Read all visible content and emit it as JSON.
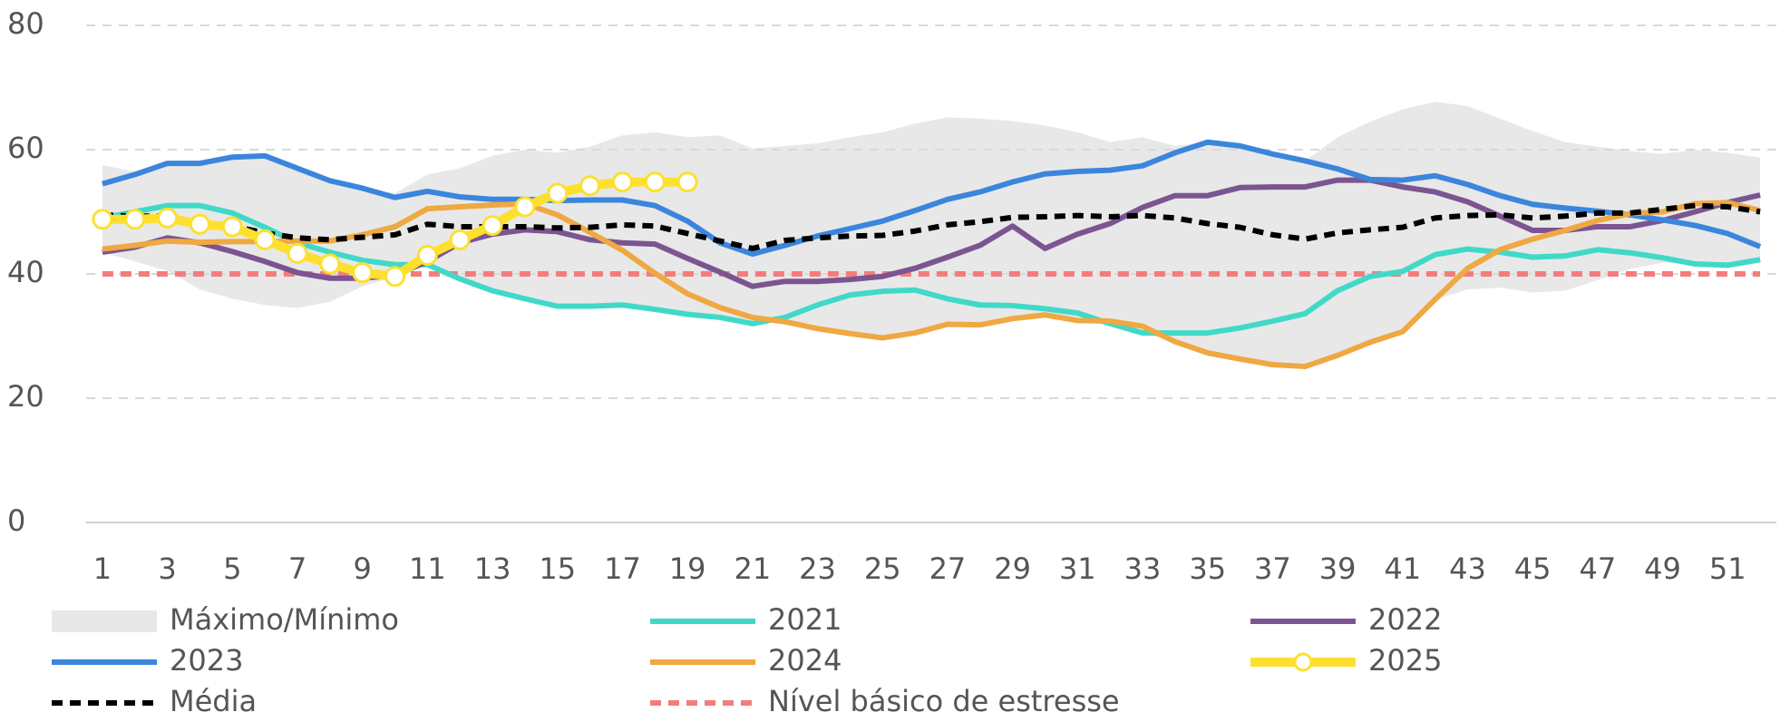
{
  "chart_data": {
    "type": "line",
    "x": [
      1,
      2,
      3,
      4,
      5,
      6,
      7,
      8,
      9,
      10,
      11,
      12,
      13,
      14,
      15,
      16,
      17,
      18,
      19,
      20,
      21,
      22,
      23,
      24,
      25,
      26,
      27,
      28,
      29,
      30,
      31,
      32,
      33,
      34,
      35,
      36,
      37,
      38,
      39,
      40,
      41,
      42,
      43,
      44,
      45,
      46,
      47,
      48,
      49,
      50,
      51,
      52
    ],
    "xlim": [
      0.5,
      52.5
    ],
    "xticks": [
      1,
      3,
      5,
      7,
      9,
      11,
      13,
      15,
      17,
      19,
      21,
      23,
      25,
      27,
      29,
      31,
      33,
      35,
      37,
      39,
      41,
      43,
      45,
      47,
      49,
      51
    ],
    "ylim": [
      0,
      80
    ],
    "yticks": [
      0,
      20,
      40,
      60,
      80
    ],
    "grid": true,
    "band": {
      "name": "Máximo/Mínimo",
      "color": "#e8e8e8",
      "upper": [
        57.5,
        56.5,
        57.5,
        58,
        59,
        59,
        57,
        55,
        53.8,
        53,
        56,
        57,
        59,
        60,
        59.5,
        60.5,
        62.3,
        62.8,
        62,
        62.3,
        60.2,
        60.6,
        61,
        62,
        62.8,
        64.2,
        65.2,
        65,
        64.6,
        63.9,
        62.8,
        61.2,
        62,
        60.6,
        61.2,
        60.6,
        59.3,
        58.2,
        62,
        64.5,
        66.5,
        67.7,
        67,
        65,
        63,
        61.2,
        60.5,
        59.8,
        59.3,
        60,
        59.5,
        58.7
      ],
      "lower": [
        43.5,
        42,
        40.5,
        37.5,
        36,
        35,
        34.5,
        35.5,
        38,
        39.5,
        41.5,
        39.2,
        37.3,
        36,
        34.8,
        34.8,
        35,
        34.3,
        33.5,
        33,
        32,
        32.3,
        31.2,
        30.4,
        29.7,
        30.5,
        31.9,
        31.8,
        32.8,
        33.4,
        32.5,
        32,
        30.5,
        29.1,
        27.3,
        26.3,
        25.4,
        25.1,
        26.9,
        29,
        30.7,
        35.9,
        37.5,
        37.8,
        37,
        37.3,
        39,
        40.8,
        41.8,
        41.6,
        41.4,
        42.3
      ]
    },
    "series": [
      {
        "name": "2021",
        "color": "#40d9c8",
        "values": [
          49,
          50,
          51,
          51,
          49.8,
          47.5,
          45,
          43.5,
          42.2,
          41.5,
          41.5,
          39.2,
          37.3,
          36,
          34.8,
          34.8,
          35,
          34.3,
          33.5,
          33,
          32,
          33,
          35,
          36.6,
          37.2,
          37.4,
          36,
          35,
          34.9,
          34.4,
          33.7,
          32,
          30.5,
          30.5,
          30.5,
          31.3,
          32.4,
          33.6,
          37.3,
          39.6,
          40.4,
          43.1,
          44,
          43.5,
          42.7,
          42.9,
          43.9,
          43.4,
          42.6,
          41.6,
          41.4,
          42.3
        ]
      },
      {
        "name": "2022",
        "color": "#7b5591",
        "values": [
          43.5,
          44.3,
          45.8,
          45,
          43.6,
          42,
          40.2,
          39.3,
          39.3,
          39.8,
          42,
          45,
          46.4,
          47.1,
          46.8,
          45.5,
          45,
          44.8,
          42.5,
          40.3,
          38,
          38.8,
          38.8,
          39.1,
          39.6,
          40.9,
          42.7,
          44.6,
          47.7,
          44.1,
          46.4,
          48.1,
          50.7,
          52.6,
          52.6,
          53.9,
          54,
          54,
          55.1,
          55.1,
          54,
          53.2,
          51.6,
          49.3,
          47,
          47,
          47.6,
          47.6,
          48.6,
          50,
          51.5,
          52.7
        ]
      },
      {
        "name": "2023",
        "color": "#3b86dc",
        "values": [
          54.5,
          56,
          57.8,
          57.8,
          58.8,
          59,
          57,
          55,
          53.8,
          52.3,
          53.3,
          52.4,
          52,
          52,
          51.8,
          51.9,
          51.9,
          51,
          48.5,
          45,
          43.2,
          44.6,
          46.1,
          47.3,
          48.5,
          50.2,
          52,
          53.2,
          54.8,
          56.1,
          56.5,
          56.7,
          57.4,
          59.5,
          61.2,
          60.6,
          59.3,
          58.2,
          56.9,
          55.2,
          55.1,
          55.8,
          54.4,
          52.6,
          51.2,
          50.6,
          50.1,
          49.5,
          48.7,
          47.8,
          46.5,
          44.4
        ]
      },
      {
        "name": "2024",
        "color": "#efa842",
        "values": [
          44,
          44.6,
          45.3,
          45.1,
          45.2,
          45.2,
          45.3,
          45.3,
          46.3,
          47.6,
          50.5,
          50.8,
          51.1,
          51.3,
          49.5,
          46.7,
          43.8,
          40.1,
          36.8,
          34.6,
          33,
          32.3,
          31.2,
          30.4,
          29.7,
          30.5,
          31.9,
          31.8,
          32.8,
          33.4,
          32.5,
          32.4,
          31.6,
          29.1,
          27.3,
          26.3,
          25.4,
          25.1,
          26.9,
          29,
          30.7,
          35.9,
          40.9,
          43.9,
          45.6,
          47,
          48.6,
          49.7,
          50,
          51.3,
          51.5,
          50.2
        ]
      },
      {
        "name": "2025",
        "color": "#fde02e",
        "markers": true,
        "values": [
          48.8,
          48.8,
          49,
          48,
          47.6,
          45.5,
          43.3,
          41.6,
          40.2,
          39.6,
          43,
          45.5,
          47.8,
          50.8,
          53,
          54.2,
          54.8,
          54.8,
          54.8,
          null,
          null,
          null,
          null,
          null,
          null,
          null,
          null,
          null,
          null,
          null,
          null,
          null,
          null,
          null,
          null,
          null,
          null,
          null,
          null,
          null,
          null,
          null,
          null,
          null,
          null,
          null,
          null,
          null,
          null,
          null,
          null,
          null
        ]
      },
      {
        "name": "Média",
        "color": "#000000",
        "dashed": true,
        "values": [
          49.5,
          49.3,
          49.3,
          48.2,
          47.7,
          46.6,
          45.8,
          45.5,
          45.9,
          46.3,
          48,
          47.6,
          47.6,
          47.6,
          47.4,
          47.5,
          47.9,
          47.7,
          46.5,
          45.3,
          44.1,
          45.4,
          45.8,
          46.1,
          46.2,
          46.9,
          47.9,
          48.4,
          49.1,
          49.2,
          49.4,
          49.2,
          49.4,
          49,
          48.1,
          47.5,
          46.3,
          45.6,
          46.6,
          47.1,
          47.5,
          49,
          49.4,
          49.5,
          49,
          49.3,
          49.8,
          49.8,
          50.4,
          51,
          50.8,
          50
        ]
      },
      {
        "name": "Nível básico de estresse",
        "color": "#f47c7c",
        "dashed": true,
        "values": [
          40,
          40,
          40,
          40,
          40,
          40,
          40,
          40,
          40,
          40,
          40,
          40,
          40,
          40,
          40,
          40,
          40,
          40,
          40,
          40,
          40,
          40,
          40,
          40,
          40,
          40,
          40,
          40,
          40,
          40,
          40,
          40,
          40,
          40,
          40,
          40,
          40,
          40,
          40,
          40,
          40,
          40,
          40,
          40,
          40,
          40,
          40,
          40,
          40,
          40,
          40,
          40
        ]
      }
    ]
  }
}
